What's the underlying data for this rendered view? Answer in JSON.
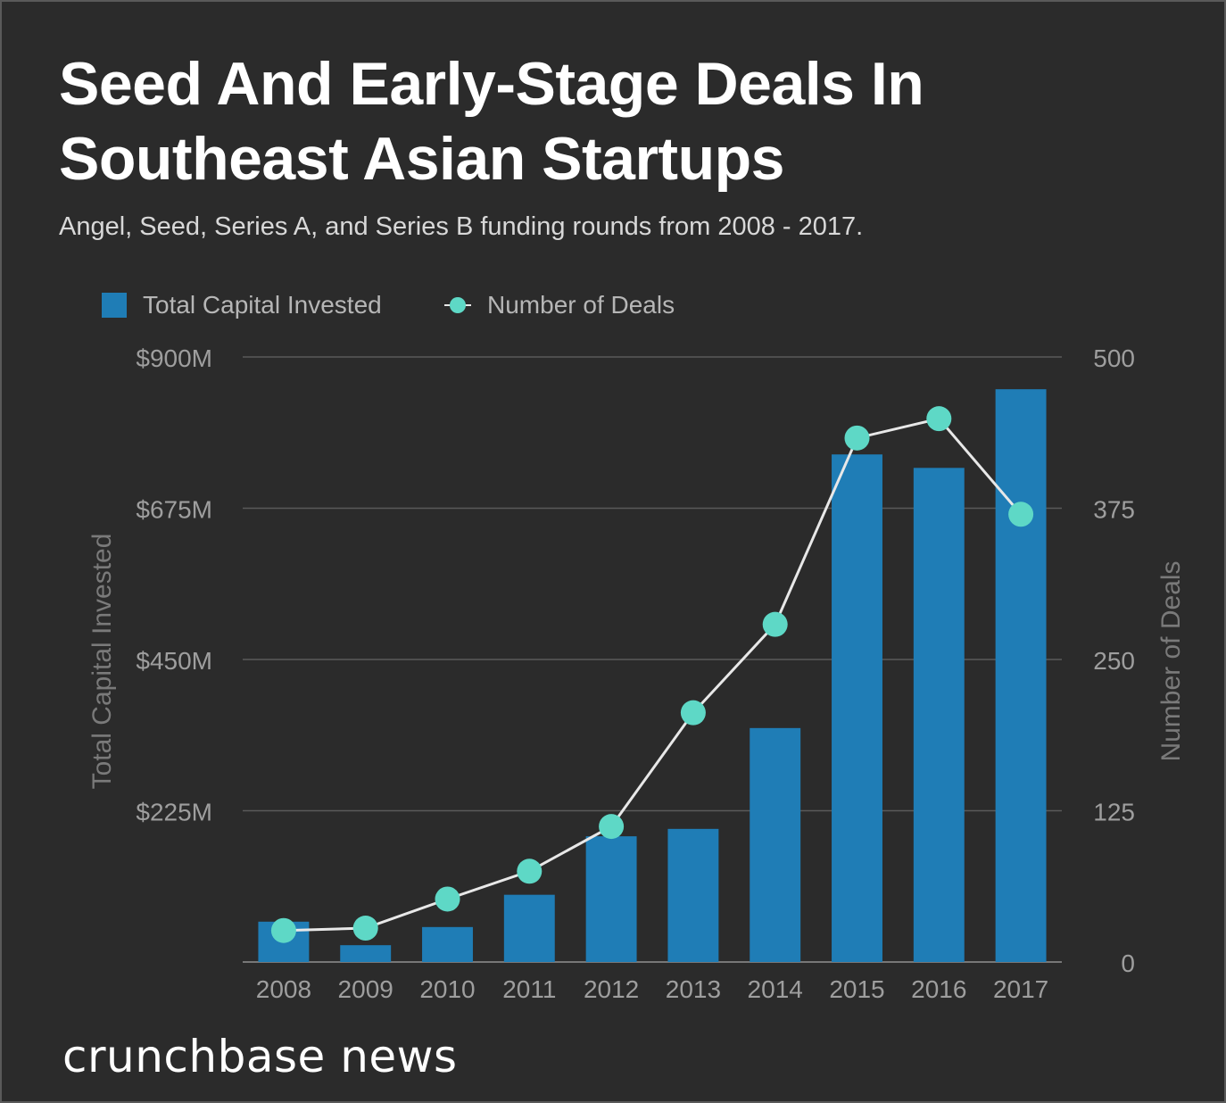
{
  "header": {
    "title_line1": "Seed And Early-Stage Deals In",
    "title_line2": "Southeast Asian Startups",
    "subtitle": "Angel, Seed, Series A, and Series B funding rounds from 2008 - 2017."
  },
  "legend": {
    "bars_label": "Total Capital Invested",
    "line_label": "Number of Deals"
  },
  "footer": {
    "brand": "crunchbase news"
  },
  "colors": {
    "background": "#2b2b2b",
    "bar": "#1f7db6",
    "marker": "#5ed8c6",
    "line": "#e8e8e8",
    "grid": "#5a5a5a",
    "axis_text": "#9e9e9e"
  },
  "chart_data": {
    "type": "bar",
    "title": "Seed And Early-Stage Deals In Southeast Asian Startups",
    "subtitle": "Angel, Seed, Series A, and Series B funding rounds from 2008 - 2017.",
    "categories": [
      "2008",
      "2009",
      "2010",
      "2011",
      "2012",
      "2013",
      "2014",
      "2015",
      "2016",
      "2017"
    ],
    "series": [
      {
        "name": "Total Capital Invested",
        "type": "bar",
        "axis": "left",
        "unit": "$M",
        "values": [
          60,
          25,
          52,
          100,
          187,
          198,
          348,
          755,
          735,
          852
        ]
      },
      {
        "name": "Number of Deals",
        "type": "line",
        "axis": "right",
        "values": [
          26,
          28,
          52,
          75,
          112,
          206,
          279,
          433,
          449,
          370
        ]
      }
    ],
    "y_left": {
      "label": "Total Capital Invested",
      "range": [
        0,
        900
      ],
      "ticks": [
        225,
        450,
        675,
        900
      ],
      "tick_labels": [
        "$225M",
        "$450M",
        "$675M",
        "$900M"
      ]
    },
    "y_right": {
      "label": "Number of Deals",
      "range": [
        0,
        500
      ],
      "ticks": [
        0,
        125,
        250,
        375,
        500
      ],
      "tick_labels": [
        "0",
        "125",
        "250",
        "375",
        "500"
      ]
    },
    "grid": true,
    "legend_position": "top-left"
  }
}
